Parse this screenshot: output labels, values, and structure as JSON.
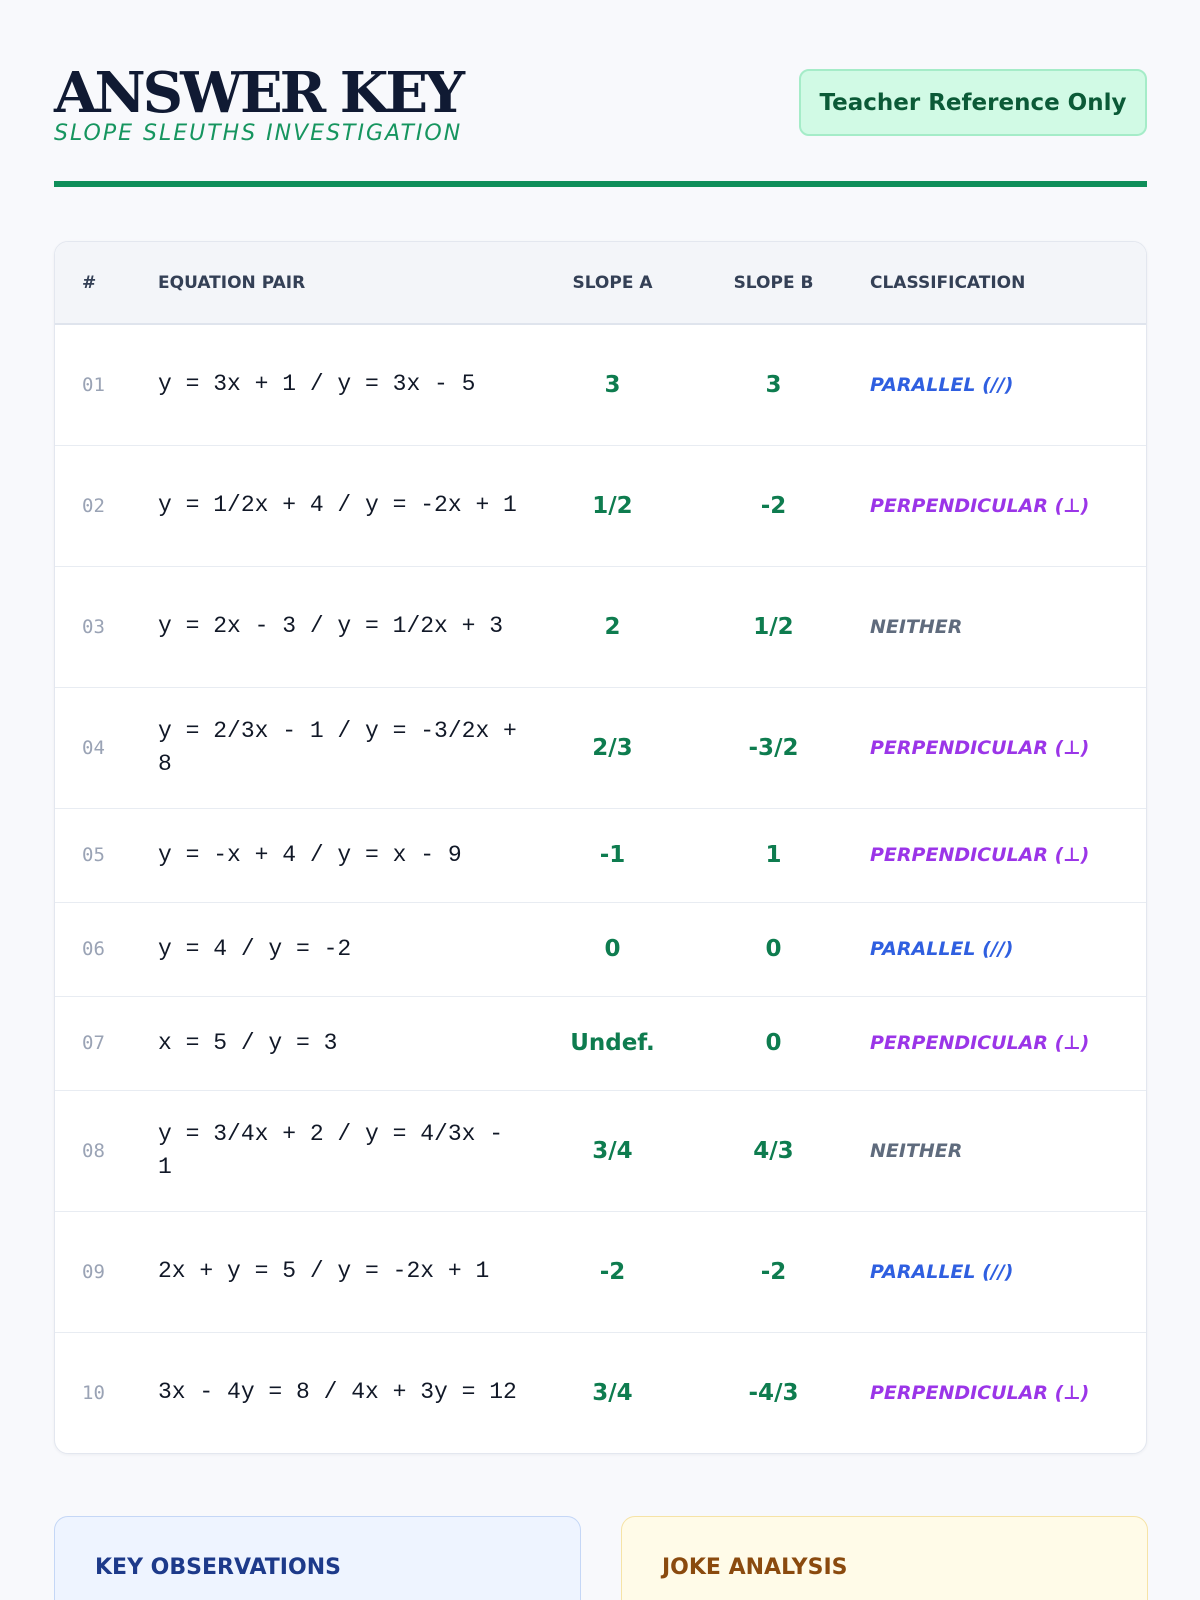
{
  "header": {
    "title": "ANSWER KEY",
    "subtitle": "SLOPE SLEUTHS INVESTIGATION",
    "badge": "Teacher Reference Only"
  },
  "table": {
    "columns": {
      "num": "#",
      "pair": "EQUATION PAIR",
      "slope_a": "SLOPE A",
      "slope_b": "SLOPE B",
      "classification": "CLASSIFICATION"
    },
    "rows": [
      {
        "num": "01",
        "pair": "y = 3x + 1 / y = 3x - 5",
        "slope_a": "3",
        "slope_b": "3",
        "classification": "PARALLEL (//)"
      },
      {
        "num": "02",
        "pair": "y = 1/2x + 4 / y = -2x + 1",
        "slope_a": "1/2",
        "slope_b": "-2",
        "classification": "PERPENDICULAR (⊥)"
      },
      {
        "num": "03",
        "pair": "y = 2x - 3 / y = 1/2x + 3",
        "slope_a": "2",
        "slope_b": "1/2",
        "classification": "NEITHER"
      },
      {
        "num": "04",
        "pair": "y = 2/3x - 1 / y = -3/2x + 8",
        "slope_a": "2/3",
        "slope_b": "-3/2",
        "classification": "PERPENDICULAR (⊥)"
      },
      {
        "num": "05",
        "pair": "y = -x + 4 / y = x - 9",
        "slope_a": "-1",
        "slope_b": "1",
        "classification": "PERPENDICULAR (⊥)"
      },
      {
        "num": "06",
        "pair": "y = 4 / y = -2",
        "slope_a": "0",
        "slope_b": "0",
        "classification": "PARALLEL (//)"
      },
      {
        "num": "07",
        "pair": "x = 5 / y = 3",
        "slope_a": "Undef.",
        "slope_b": "0",
        "classification": "PERPENDICULAR (⊥)"
      },
      {
        "num": "08",
        "pair": "y = 3/4x + 2 / y = 4/3x - 1",
        "slope_a": "3/4",
        "slope_b": "4/3",
        "classification": "NEITHER"
      },
      {
        "num": "09",
        "pair": "2x + y = 5 / y = -2x + 1",
        "slope_a": "-2",
        "slope_b": "-2",
        "classification": "PARALLEL (//)"
      },
      {
        "num": "10",
        "pair": "3x - 4y = 8 / 4x + 3y = 12",
        "slope_a": "3/4",
        "slope_b": "-4/3",
        "classification": "PERPENDICULAR (⊥)"
      }
    ]
  },
  "observations": {
    "title": "KEY OBSERVATIONS"
  },
  "joke_analysis": {
    "title": "JOKE ANALYSIS"
  },
  "colors": {
    "accent_green": "#0f8f5a",
    "parallel": "#2f5fe0",
    "perpendicular": "#9b35e8",
    "neither": "#5f6b7d"
  }
}
